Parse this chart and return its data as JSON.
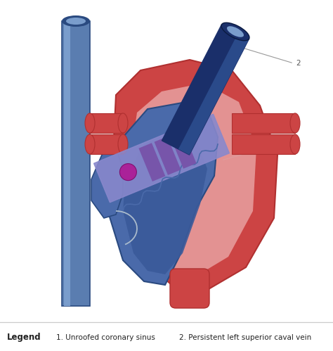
{
  "bg_color": "#ffffff",
  "red_heart": "#cc4444",
  "red_dark": "#b03030",
  "red_light": "#e8a0a0",
  "red_mid": "#d96060",
  "blue_vessel": "#5a7db0",
  "blue_vessel_light": "#7a9dcc",
  "blue_vessel_dark": "#3a5a90",
  "blue_atrium": "#4a6aaa",
  "blue_atrium_light": "#8aaace",
  "blue_atrium_dark": "#2a4a80",
  "blue_ventricle": "#3a5a9a",
  "dark_blue_vein": "#1a2f6a",
  "dark_blue_vein_mid": "#2a4a8a",
  "dark_blue_vein_light": "#4a6aaa",
  "coronary_band": "#8888cc",
  "coronary_band_light": "#aaaadd",
  "purple_stripe": "#7755aa",
  "purple_dot": "#aa2299",
  "inner_line": "#aabbcc",
  "scallop_color": "#4a6aaa",
  "annotation_line": "#999999",
  "annotation_text": "#555555",
  "legend_text": "#222222",
  "separator_color": "#cccccc",
  "label1": "1. Unroofed coronary sinus",
  "label2": "2. Persistent left superior caval vein",
  "legend_title": "Legend"
}
